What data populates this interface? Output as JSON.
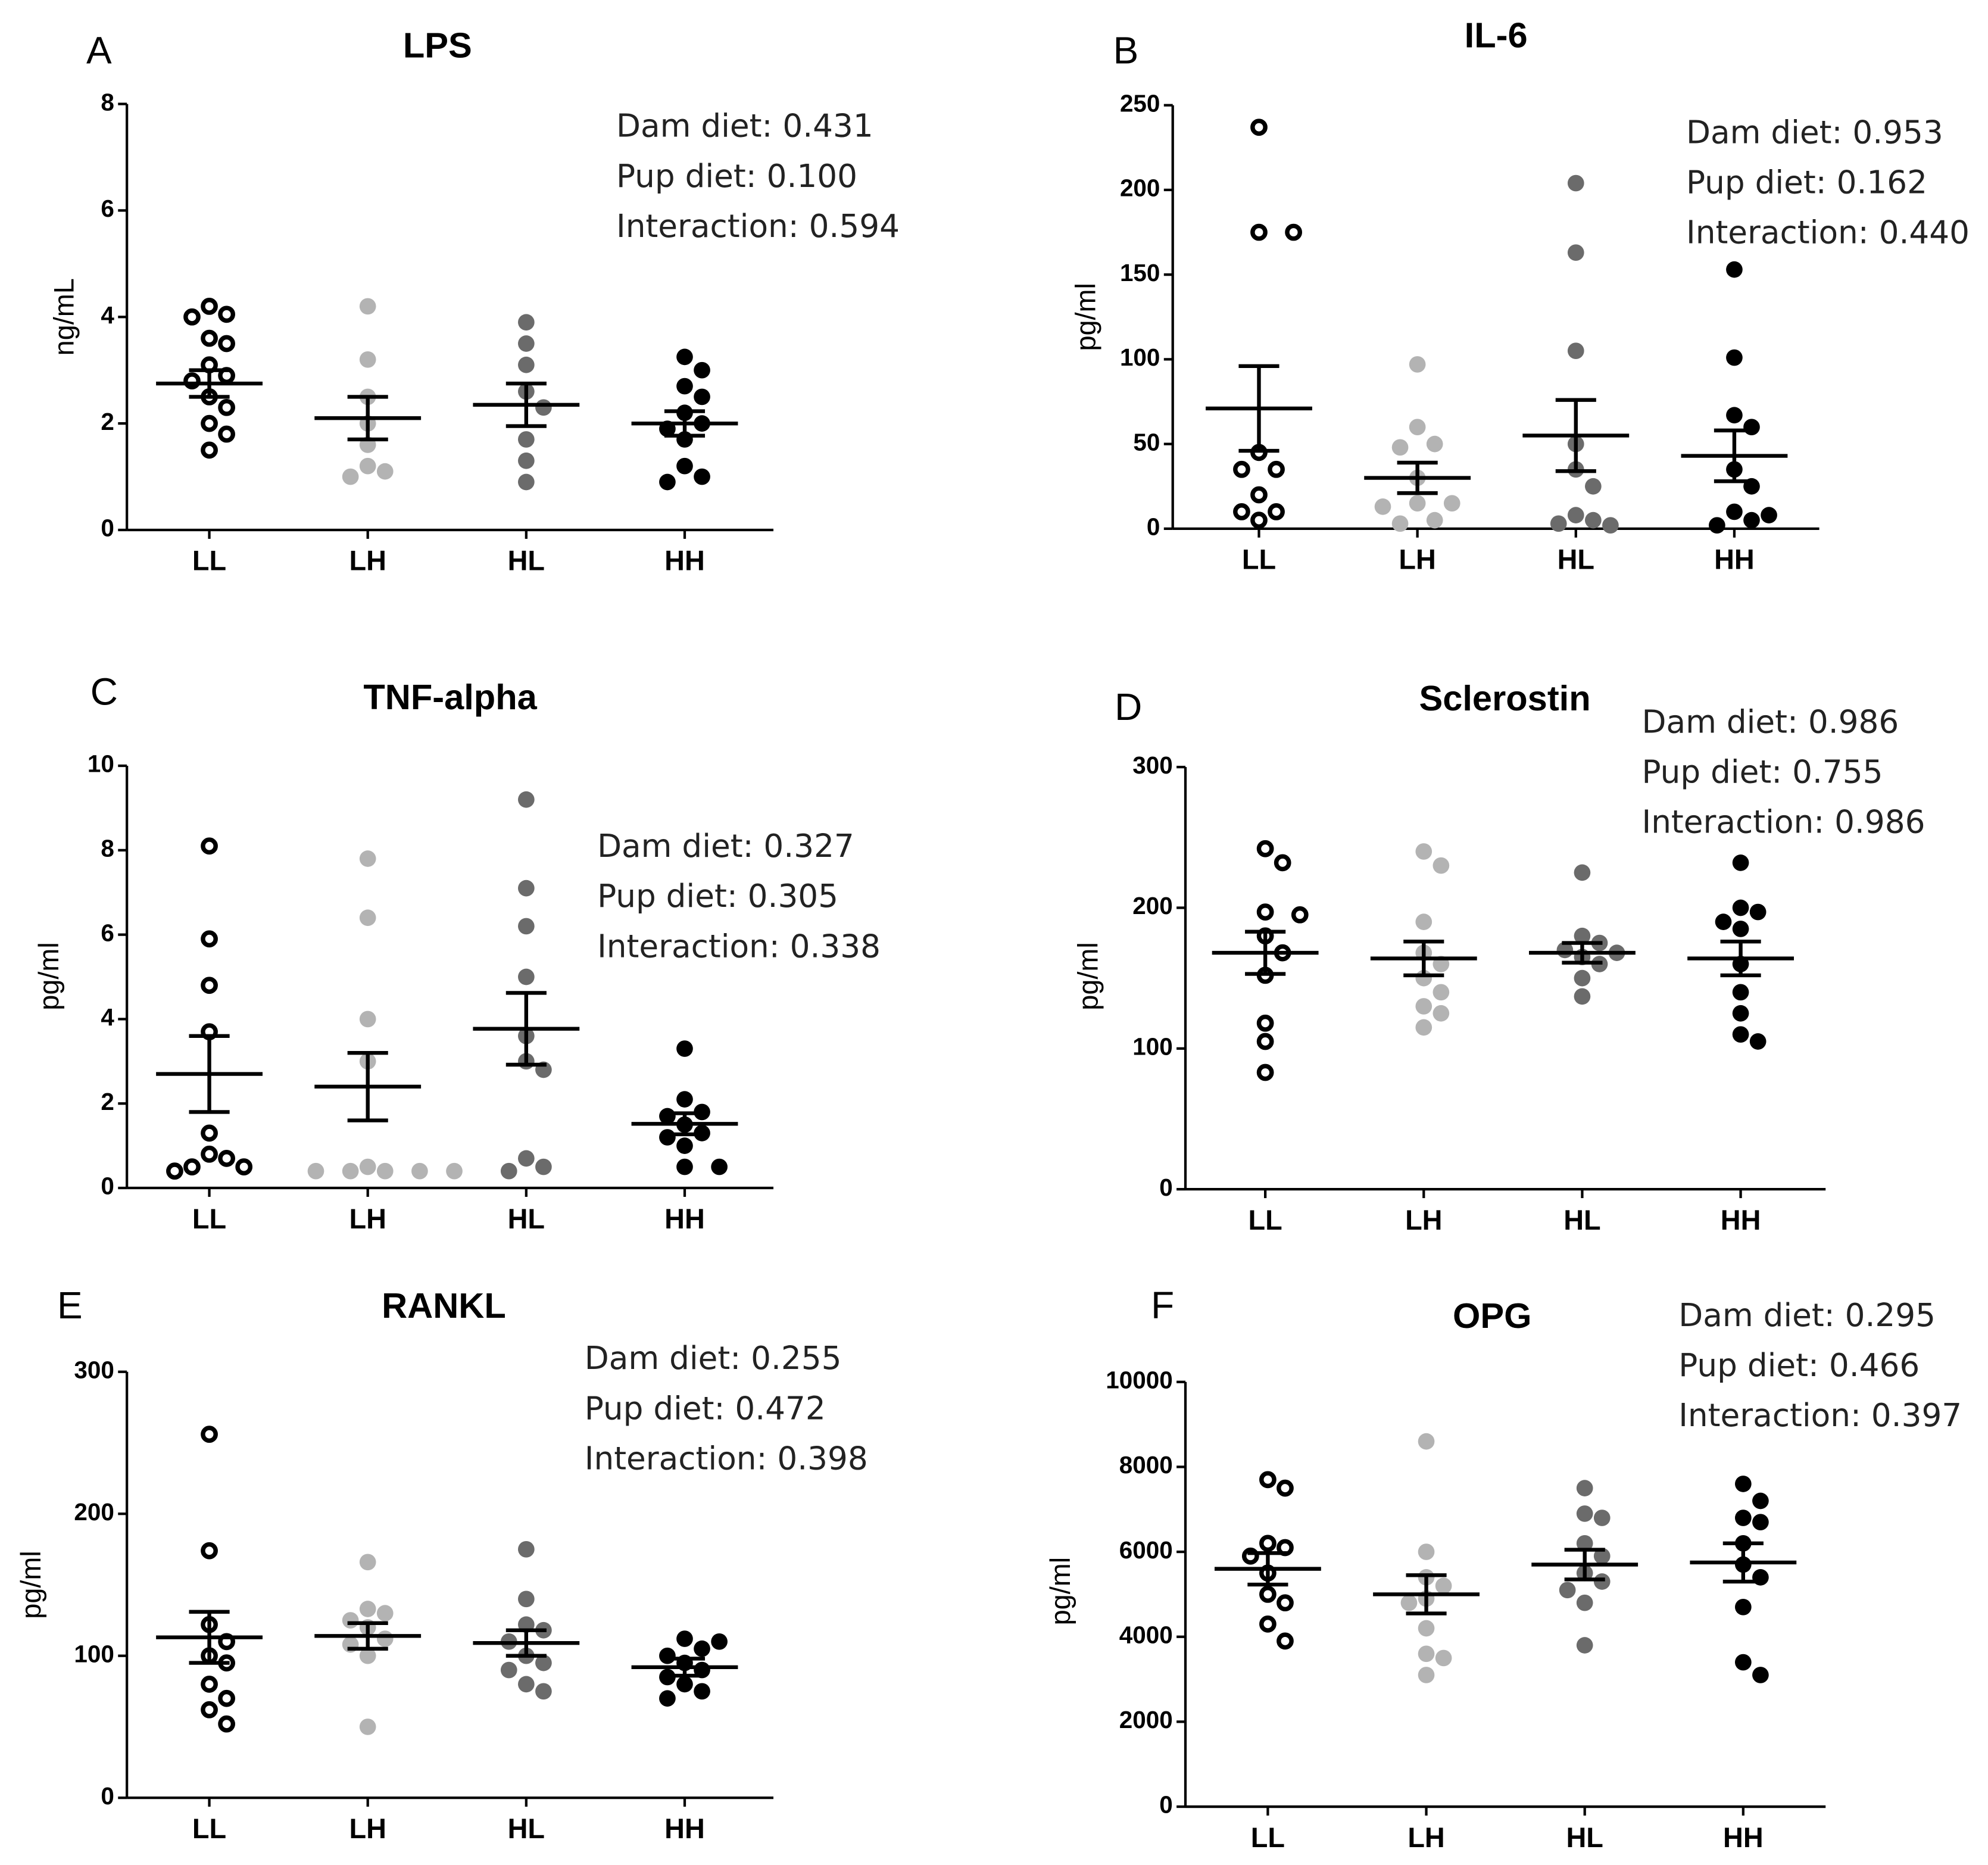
{
  "chart_data": [
    {
      "type": "dot",
      "panel": "A",
      "title": "LPS",
      "ylabel": "ng/mL",
      "categories": [
        "LL",
        "LH",
        "HL",
        "HH"
      ],
      "colors": [
        "#000000",
        "#b3b3b3",
        "#6b6b6b",
        "#000000"
      ],
      "hollow": [
        true,
        false,
        false,
        false
      ],
      "ylim": [
        0,
        8
      ],
      "yticks": [
        0,
        2,
        4,
        6,
        8
      ],
      "annotations": [
        "Dam diet: 0.431",
        "Pup diet: 0.100",
        "Interaction: 0.594"
      ],
      "groups": [
        {
          "points": [
            4.2,
            4.05,
            4.0,
            3.6,
            3.5,
            3.1,
            2.9,
            2.8,
            2.5,
            2.3,
            2.0,
            1.8,
            1.5
          ],
          "mean": 2.75,
          "sem": 0.25
        },
        {
          "points": [
            4.2,
            3.2,
            2.5,
            2.0,
            1.6,
            1.2,
            1.1,
            1.0
          ],
          "mean": 2.1,
          "sem": 0.4
        },
        {
          "points": [
            3.9,
            3.5,
            3.1,
            2.6,
            2.3,
            1.7,
            1.3,
            0.9
          ],
          "mean": 2.35,
          "sem": 0.4
        },
        {
          "points": [
            3.25,
            3.0,
            2.7,
            2.5,
            2.2,
            2.0,
            1.9,
            1.7,
            1.2,
            1.0,
            0.9
          ],
          "mean": 2.0,
          "sem": 0.23
        }
      ]
    },
    {
      "type": "dot",
      "panel": "B",
      "title": "IL-6",
      "ylabel": "pg/ml",
      "categories": [
        "LL",
        "LH",
        "HL",
        "HH"
      ],
      "colors": [
        "#000000",
        "#b3b3b3",
        "#6b6b6b",
        "#000000"
      ],
      "hollow": [
        true,
        false,
        false,
        false
      ],
      "ylim": [
        0,
        250
      ],
      "yticks": [
        0,
        50,
        100,
        150,
        200,
        250
      ],
      "annotations": [
        "Dam diet: 0.953",
        "Pup diet: 0.162",
        "Interaction: 0.440"
      ],
      "groups": [
        {
          "points": [
            237,
            175,
            175,
            45,
            35,
            35,
            20,
            10,
            10,
            5
          ],
          "mean": 71,
          "sem": 25
        },
        {
          "points": [
            97,
            60,
            50,
            48,
            30,
            15,
            15,
            13,
            5,
            3
          ],
          "mean": 30,
          "sem": 9
        },
        {
          "points": [
            204,
            163,
            105,
            50,
            35,
            25,
            8,
            5,
            3,
            2
          ],
          "mean": 55,
          "sem": 21
        },
        {
          "points": [
            153,
            101,
            67,
            60,
            35,
            25,
            10,
            8,
            5,
            2
          ],
          "mean": 43,
          "sem": 15
        }
      ]
    },
    {
      "type": "dot",
      "panel": "C",
      "title": "TNF-alpha",
      "ylabel": "pg/ml",
      "categories": [
        "LL",
        "LH",
        "HL",
        "HH"
      ],
      "colors": [
        "#000000",
        "#b3b3b3",
        "#6b6b6b",
        "#000000"
      ],
      "hollow": [
        true,
        false,
        false,
        false
      ],
      "ylim": [
        0,
        10
      ],
      "yticks": [
        0,
        2,
        4,
        6,
        8,
        10
      ],
      "annotations": [
        "Dam diet: 0.327",
        "Pup diet: 0.305",
        "Interaction: 0.338"
      ],
      "groups": [
        {
          "points": [
            8.1,
            5.9,
            4.8,
            3.7,
            1.3,
            0.8,
            0.7,
            0.5,
            0.5,
            0.4
          ],
          "mean": 2.7,
          "sem": 0.9
        },
        {
          "points": [
            7.8,
            6.4,
            4.0,
            3.0,
            0.5,
            0.4,
            0.4,
            0.4,
            0.4,
            0.4
          ],
          "mean": 2.4,
          "sem": 0.8
        },
        {
          "points": [
            9.2,
            7.1,
            6.2,
            5.0,
            3.6,
            3.0,
            2.8,
            0.7,
            0.5,
            0.4
          ],
          "mean": 3.77,
          "sem": 0.85
        },
        {
          "points": [
            3.3,
            2.1,
            1.8,
            1.7,
            1.5,
            1.3,
            1.2,
            1.0,
            0.5,
            0.5
          ],
          "mean": 1.52,
          "sem": 0.25
        }
      ]
    },
    {
      "type": "dot",
      "panel": "D",
      "title": "Sclerostin",
      "ylabel": "pg/ml",
      "categories": [
        "LL",
        "LH",
        "HL",
        "HH"
      ],
      "colors": [
        "#000000",
        "#b3b3b3",
        "#6b6b6b",
        "#000000"
      ],
      "hollow": [
        true,
        false,
        false,
        false
      ],
      "ylim": [
        0,
        300
      ],
      "yticks": [
        0,
        100,
        200,
        300
      ],
      "annotations": [
        "Dam diet: 0.986",
        "Pup diet: 0.755",
        "Interaction: 0.986"
      ],
      "groups": [
        {
          "points": [
            242,
            232,
            197,
            195,
            180,
            168,
            152,
            118,
            105,
            83
          ],
          "mean": 168,
          "sem": 15
        },
        {
          "points": [
            240,
            230,
            190,
            168,
            160,
            150,
            140,
            130,
            125,
            115
          ],
          "mean": 164,
          "sem": 12
        },
        {
          "points": [
            225,
            180,
            175,
            170,
            168,
            165,
            160,
            150,
            137
          ],
          "mean": 168,
          "sem": 7
        },
        {
          "points": [
            232,
            200,
            197,
            190,
            185,
            160,
            140,
            125,
            110,
            105
          ],
          "mean": 164,
          "sem": 12
        }
      ]
    },
    {
      "type": "dot",
      "panel": "E",
      "title": "RANKL",
      "ylabel": "pg/ml",
      "categories": [
        "LL",
        "LH",
        "HL",
        "HH"
      ],
      "colors": [
        "#000000",
        "#b3b3b3",
        "#6b6b6b",
        "#000000"
      ],
      "hollow": [
        true,
        false,
        false,
        false
      ],
      "ylim": [
        0,
        300
      ],
      "yticks": [
        0,
        100,
        200,
        300
      ],
      "annotations": [
        "Dam diet: 0.255",
        "Pup diet: 0.472",
        "Interaction: 0.398"
      ],
      "groups": [
        {
          "points": [
            256,
            174,
            122,
            110,
            100,
            95,
            80,
            70,
            62,
            52
          ],
          "mean": 113,
          "sem": 18
        },
        {
          "points": [
            166,
            133,
            130,
            125,
            120,
            112,
            108,
            100,
            50
          ],
          "mean": 114,
          "sem": 9
        },
        {
          "points": [
            175,
            140,
            122,
            118,
            110,
            100,
            95,
            90,
            80,
            75
          ],
          "mean": 109,
          "sem": 9
        },
        {
          "points": [
            112,
            110,
            105,
            100,
            95,
            90,
            85,
            80,
            75,
            70
          ],
          "mean": 92,
          "sem": 6
        }
      ]
    },
    {
      "type": "dot",
      "panel": "F",
      "title": "OPG",
      "ylabel": "pg/ml",
      "categories": [
        "LL",
        "LH",
        "HL",
        "HH"
      ],
      "colors": [
        "#000000",
        "#b3b3b3",
        "#6b6b6b",
        "#000000"
      ],
      "hollow": [
        true,
        false,
        false,
        false
      ],
      "ylim": [
        0,
        10000
      ],
      "yticks": [
        0,
        2000,
        4000,
        6000,
        8000,
        10000
      ],
      "annotations": [
        "Dam diet: 0.295",
        "Pup diet: 0.466",
        "Interaction: 0.397"
      ],
      "groups": [
        {
          "points": [
            7700,
            7500,
            6200,
            6100,
            5900,
            5500,
            5000,
            4800,
            4300,
            3900
          ],
          "mean": 5600,
          "sem": 370
        },
        {
          "points": [
            8600,
            6000,
            5400,
            5200,
            4900,
            4800,
            4200,
            3600,
            3500,
            3100
          ],
          "mean": 5000,
          "sem": 450
        },
        {
          "points": [
            7500,
            6900,
            6800,
            6200,
            5900,
            5500,
            5300,
            5100,
            4800,
            3800
          ],
          "mean": 5700,
          "sem": 350
        },
        {
          "points": [
            7600,
            7200,
            6800,
            6700,
            6200,
            5700,
            5400,
            4700,
            3400,
            3100
          ],
          "mean": 5750,
          "sem": 450
        }
      ]
    }
  ]
}
